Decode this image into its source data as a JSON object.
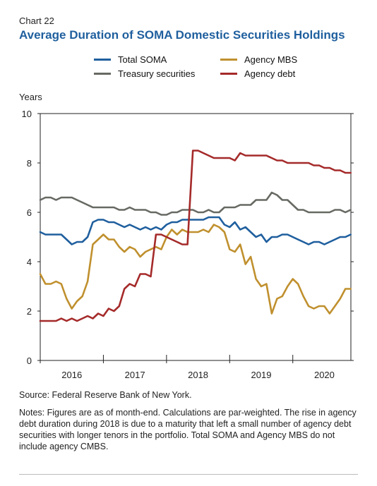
{
  "header": {
    "chart_number": "Chart 22",
    "title": "Average Duration of SOMA Domestic Securities Holdings"
  },
  "footer": {
    "source": "Source: Federal Reserve Bank of New York.",
    "notes": "Notes: Figures are as of month-end. Calculations are par-weighted. The rise in agency debt duration during 2018 is due to a maturity that left a small number of agency debt securities with longer tenors in the portfolio. Total SOMA and Agency MBS do not include agency CMBS."
  },
  "chart_data": {
    "type": "line",
    "ylabel": "Years",
    "ylim": [
      0,
      10
    ],
    "yticks": [
      0,
      2,
      4,
      6,
      8,
      10
    ],
    "xlim": [
      2015.5,
      2020.42
    ],
    "xticks": [
      {
        "label": "2016",
        "value": 2016.0
      },
      {
        "label": "2017",
        "value": 2017.0
      },
      {
        "label": "2018",
        "value": 2018.0
      },
      {
        "label": "2019",
        "value": 2019.0
      },
      {
        "label": "2020",
        "value": 2020.0
      }
    ],
    "year_boundaries": [
      2015.5,
      2016.5,
      2017.5,
      2018.5,
      2019.5
    ],
    "x": [
      2015.5,
      2015.583,
      2015.667,
      2015.75,
      2015.833,
      2015.917,
      2016.0,
      2016.083,
      2016.167,
      2016.25,
      2016.333,
      2016.417,
      2016.5,
      2016.583,
      2016.667,
      2016.75,
      2016.833,
      2016.917,
      2017.0,
      2017.083,
      2017.167,
      2017.25,
      2017.333,
      2017.417,
      2017.5,
      2017.583,
      2017.667,
      2017.75,
      2017.833,
      2017.917,
      2018.0,
      2018.083,
      2018.167,
      2018.25,
      2018.333,
      2018.417,
      2018.5,
      2018.583,
      2018.667,
      2018.75,
      2018.833,
      2018.917,
      2019.0,
      2019.083,
      2019.167,
      2019.25,
      2019.333,
      2019.417,
      2019.5,
      2019.583,
      2019.667,
      2019.75,
      2019.833,
      2019.917,
      2020.0,
      2020.083,
      2020.167,
      2020.25,
      2020.333,
      2020.417
    ],
    "series": [
      {
        "name": "Total SOMA",
        "color": "#1f5f9e",
        "values": [
          5.2,
          5.1,
          5.1,
          5.1,
          5.1,
          4.9,
          4.7,
          4.8,
          4.8,
          5.0,
          5.6,
          5.7,
          5.7,
          5.6,
          5.6,
          5.5,
          5.4,
          5.5,
          5.4,
          5.3,
          5.4,
          5.3,
          5.4,
          5.3,
          5.5,
          5.6,
          5.6,
          5.7,
          5.7,
          5.7,
          5.7,
          5.7,
          5.8,
          5.8,
          5.8,
          5.5,
          5.4,
          5.6,
          5.3,
          5.4,
          5.2,
          5.0,
          5.1,
          4.8,
          5.0,
          5.0,
          5.1,
          5.1,
          5.0,
          4.9,
          4.8,
          4.7,
          4.8,
          4.8,
          4.7,
          4.8,
          4.9,
          5.0,
          5.0,
          5.1
        ]
      },
      {
        "name": "Treasury securities",
        "color": "#676a63",
        "values": [
          6.5,
          6.6,
          6.6,
          6.5,
          6.6,
          6.6,
          6.6,
          6.5,
          6.4,
          6.3,
          6.2,
          6.2,
          6.2,
          6.2,
          6.2,
          6.1,
          6.1,
          6.2,
          6.1,
          6.1,
          6.1,
          6.0,
          6.0,
          5.9,
          5.9,
          6.0,
          6.0,
          6.1,
          6.1,
          6.1,
          6.0,
          6.0,
          6.1,
          6.0,
          6.0,
          6.2,
          6.2,
          6.2,
          6.3,
          6.3,
          6.3,
          6.5,
          6.5,
          6.5,
          6.8,
          6.7,
          6.5,
          6.5,
          6.3,
          6.1,
          6.1,
          6.0,
          6.0,
          6.0,
          6.0,
          6.0,
          6.1,
          6.1,
          6.0,
          6.1
        ]
      },
      {
        "name": "Agency MBS",
        "color": "#c0902e",
        "values": [
          3.5,
          3.1,
          3.1,
          3.2,
          3.1,
          2.5,
          2.1,
          2.4,
          2.6,
          3.2,
          4.7,
          4.9,
          5.1,
          4.9,
          4.9,
          4.6,
          4.4,
          4.6,
          4.5,
          4.2,
          4.4,
          4.5,
          4.6,
          4.5,
          5.0,
          5.3,
          5.1,
          5.3,
          5.2,
          5.2,
          5.2,
          5.3,
          5.2,
          5.5,
          5.4,
          5.2,
          4.5,
          4.4,
          4.7,
          3.9,
          4.2,
          3.3,
          3.0,
          3.1,
          1.9,
          2.5,
          2.6,
          3.0,
          3.3,
          3.1,
          2.6,
          2.2,
          2.1,
          2.2,
          2.2,
          1.9,
          2.2,
          2.5,
          2.9,
          2.9
        ]
      },
      {
        "name": "Agency debt",
        "color": "#a52a2a",
        "values": [
          1.6,
          1.6,
          1.6,
          1.6,
          1.7,
          1.6,
          1.7,
          1.6,
          1.7,
          1.8,
          1.7,
          1.9,
          1.8,
          2.1,
          2.0,
          2.2,
          2.9,
          3.1,
          3.0,
          3.5,
          3.5,
          3.4,
          5.1,
          5.1,
          5.0,
          4.9,
          4.8,
          4.7,
          4.7,
          8.5,
          8.5,
          8.4,
          8.3,
          8.2,
          8.2,
          8.2,
          8.2,
          8.1,
          8.4,
          8.3,
          8.3,
          8.3,
          8.3,
          8.3,
          8.2,
          8.1,
          8.1,
          8.0,
          8.0,
          8.0,
          8.0,
          8.0,
          7.9,
          7.9,
          7.8,
          7.8,
          7.7,
          7.7,
          7.6,
          7.6
        ]
      }
    ]
  }
}
